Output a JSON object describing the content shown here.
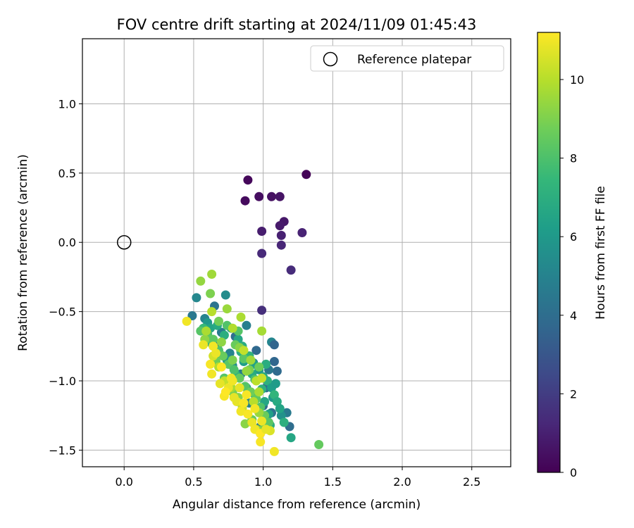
{
  "chart_data": {
    "type": "scatter",
    "title": "FOV centre drift starting at 2024/11/09 01:45:43",
    "xlabel": "Angular distance from reference (arcmin)",
    "ylabel": "Rotation from reference (arcmin)",
    "xlim": [
      -0.3,
      2.78
    ],
    "ylim": [
      -1.62,
      1.47
    ],
    "xticks": [
      0.0,
      0.5,
      1.0,
      1.5,
      2.0,
      2.5
    ],
    "xtick_labels": [
      "0.0",
      "0.5",
      "1.0",
      "1.5",
      "2.0",
      "2.5"
    ],
    "yticks": [
      1.0,
      0.5,
      0.0,
      -0.5,
      -1.0,
      -1.5
    ],
    "ytick_labels": [
      "1.0",
      "0.5",
      "0.0",
      "−0.5",
      "−1.0",
      "−1.5"
    ],
    "grid": true,
    "legend": {
      "placement": "top-right",
      "entries": [
        {
          "label": "Reference platepar",
          "marker": "open-circle"
        }
      ]
    },
    "reference_point": {
      "x": 0.0,
      "y": 0.0
    },
    "colorbar": {
      "label": "Hours from first FF file",
      "colormap": "viridis",
      "range": [
        0,
        11.2
      ],
      "ticks": [
        0,
        2,
        4,
        6,
        8,
        10
      ],
      "tick_labels": [
        "0",
        "2",
        "4",
        "6",
        "8",
        "10"
      ]
    },
    "points": [
      [
        1.31,
        0.49,
        0.1
      ],
      [
        0.89,
        0.45,
        0.2
      ],
      [
        0.87,
        0.3,
        0.3
      ],
      [
        0.97,
        0.33,
        0.4
      ],
      [
        1.06,
        0.33,
        0.5
      ],
      [
        1.12,
        0.33,
        0.6
      ],
      [
        1.15,
        0.15,
        0.7
      ],
      [
        1.12,
        0.12,
        0.8
      ],
      [
        0.99,
        0.08,
        0.9
      ],
      [
        1.13,
        0.05,
        1.0
      ],
      [
        1.28,
        0.07,
        1.1
      ],
      [
        1.13,
        -0.02,
        1.2
      ],
      [
        0.99,
        -0.08,
        1.3
      ],
      [
        1.2,
        -0.2,
        1.4
      ],
      [
        0.99,
        -0.49,
        1.5
      ],
      [
        0.49,
        -0.53,
        4.5
      ],
      [
        0.52,
        -0.4,
        5.2
      ],
      [
        0.58,
        -0.55,
        5.0
      ],
      [
        0.65,
        -0.46,
        4.3
      ],
      [
        0.73,
        -0.38,
        5.4
      ],
      [
        0.67,
        -0.75,
        3.9
      ],
      [
        0.8,
        -0.68,
        4.0
      ],
      [
        0.88,
        -0.6,
        4.8
      ],
      [
        0.95,
        -0.78,
        3.8
      ],
      [
        1.06,
        -0.72,
        5.1
      ],
      [
        1.08,
        -0.74,
        3.6
      ],
      [
        1.08,
        -0.86,
        3.7
      ],
      [
        1.1,
        -0.93,
        3.9
      ],
      [
        1.17,
        -1.23,
        4.6
      ],
      [
        1.19,
        -1.33,
        4.0
      ],
      [
        1.06,
        -1.23,
        4.2
      ],
      [
        0.98,
        -1.33,
        4.4
      ],
      [
        0.9,
        -1.16,
        4.9
      ],
      [
        1.02,
        -1.05,
        4.1
      ],
      [
        0.84,
        -0.95,
        4.7
      ],
      [
        0.93,
        -0.87,
        5.3
      ],
      [
        0.78,
        -0.89,
        5.5
      ],
      [
        1.0,
        -1.18,
        3.9
      ],
      [
        1.04,
        -0.92,
        4.5
      ],
      [
        0.76,
        -0.8,
        5.0
      ],
      [
        0.98,
        -1.38,
        5.6
      ],
      [
        1.02,
        -1.28,
        5.8
      ],
      [
        1.07,
        -1.12,
        5.9
      ],
      [
        1.13,
        -1.25,
        5.7
      ],
      [
        0.7,
        -0.65,
        4.6
      ],
      [
        0.6,
        -0.58,
        6.0
      ],
      [
        0.62,
        -0.62,
        6.5
      ],
      [
        0.67,
        -0.6,
        6.8
      ],
      [
        0.72,
        -0.67,
        7.0
      ],
      [
        0.77,
        -0.62,
        6.3
      ],
      [
        0.82,
        -0.7,
        6.6
      ],
      [
        0.85,
        -0.75,
        6.9
      ],
      [
        0.9,
        -0.82,
        7.2
      ],
      [
        0.93,
        -0.88,
        6.4
      ],
      [
        0.97,
        -0.92,
        6.1
      ],
      [
        1.0,
        -0.97,
        6.7
      ],
      [
        1.03,
        -1.0,
        7.1
      ],
      [
        1.06,
        -1.05,
        6.2
      ],
      [
        1.08,
        -1.1,
        7.3
      ],
      [
        1.1,
        -1.15,
        6.8
      ],
      [
        1.12,
        -1.2,
        6.5
      ],
      [
        1.15,
        -1.3,
        7.0
      ],
      [
        1.2,
        -1.41,
        6.6
      ],
      [
        1.05,
        -1.32,
        6.9
      ],
      [
        0.95,
        -1.2,
        7.4
      ],
      [
        0.88,
        -1.05,
        6.3
      ],
      [
        0.8,
        -0.95,
        7.2
      ],
      [
        0.74,
        -0.85,
        6.0
      ],
      [
        0.68,
        -0.8,
        6.4
      ],
      [
        0.63,
        -0.73,
        6.7
      ],
      [
        0.57,
        -0.62,
        7.5
      ],
      [
        0.86,
        -0.86,
        6.2
      ],
      [
        0.92,
        -0.95,
        6.8
      ],
      [
        0.99,
        -1.06,
        7.1
      ],
      [
        1.01,
        -1.15,
        6.6
      ],
      [
        1.04,
        -1.24,
        6.3
      ],
      [
        0.94,
        -1.1,
        7.6
      ],
      [
        0.84,
        -0.79,
        7.0
      ],
      [
        1.09,
        -1.02,
        6.1
      ],
      [
        1.02,
        -0.88,
        6.9
      ],
      [
        0.55,
        -0.64,
        8.2
      ],
      [
        0.6,
        -0.66,
        8.0
      ],
      [
        0.64,
        -0.7,
        8.4
      ],
      [
        0.68,
        -0.78,
        8.1
      ],
      [
        0.71,
        -0.82,
        8.6
      ],
      [
        0.75,
        -0.88,
        8.3
      ],
      [
        0.79,
        -0.92,
        8.0
      ],
      [
        0.83,
        -0.98,
        8.5
      ],
      [
        0.87,
        -1.04,
        8.2
      ],
      [
        0.91,
        -1.08,
        8.7
      ],
      [
        0.95,
        -1.13,
        8.4
      ],
      [
        0.98,
        -1.19,
        8.1
      ],
      [
        1.01,
        -1.25,
        8.6
      ],
      [
        1.04,
        -1.3,
        8.3
      ],
      [
        1.0,
        -1.35,
        8.8
      ],
      [
        0.92,
        -1.28,
        8.5
      ],
      [
        0.85,
        -1.18,
        8.0
      ],
      [
        0.78,
        -1.08,
        8.9
      ],
      [
        0.72,
        -0.98,
        8.2
      ],
      [
        0.66,
        -0.86,
        8.7
      ],
      [
        0.62,
        -0.7,
        8.4
      ],
      [
        0.68,
        -0.57,
        8.8
      ],
      [
        0.74,
        -0.6,
        8.1
      ],
      [
        0.8,
        -0.74,
        8.6
      ],
      [
        0.86,
        -0.84,
        8.3
      ],
      [
        0.9,
        -0.92,
        8.9
      ],
      [
        0.94,
        -0.99,
        8.0
      ],
      [
        1.4,
        -1.46,
        8.5
      ],
      [
        0.82,
        -0.64,
        8.2
      ],
      [
        0.97,
        -0.9,
        8.7
      ],
      [
        0.63,
        -0.23,
        9.6
      ],
      [
        0.55,
        -0.28,
        9.4
      ],
      [
        0.62,
        -0.37,
        9.0
      ],
      [
        0.74,
        -0.48,
        9.5
      ],
      [
        0.84,
        -0.54,
        9.8
      ],
      [
        0.99,
        -0.64,
        9.7
      ],
      [
        0.63,
        -0.5,
        10.0
      ],
      [
        0.7,
        -0.72,
        9.3
      ],
      [
        0.78,
        -0.62,
        9.9
      ],
      [
        0.83,
        -0.76,
        9.2
      ],
      [
        0.86,
        -0.78,
        10.2
      ],
      [
        0.91,
        -0.85,
        9.6
      ],
      [
        0.88,
        -0.93,
        9.4
      ],
      [
        0.95,
        -1.0,
        10.1
      ],
      [
        0.99,
        -0.98,
        10.3
      ],
      [
        0.97,
        -1.08,
        9.8
      ],
      [
        0.93,
        -1.15,
        10.0
      ],
      [
        0.97,
        -1.23,
        9.5
      ],
      [
        0.85,
        -1.2,
        10.4
      ],
      [
        0.82,
        -1.12,
        9.1
      ],
      [
        0.77,
        -1.05,
        9.7
      ],
      [
        0.72,
        -1.0,
        10.2
      ],
      [
        0.68,
        -0.9,
        9.9
      ],
      [
        0.64,
        -0.82,
        10.5
      ],
      [
        0.58,
        -0.7,
        9.3
      ],
      [
        0.59,
        -0.64,
        9.8
      ],
      [
        1.05,
        -1.36,
        10.6
      ],
      [
        0.95,
        -1.35,
        9.6
      ],
      [
        0.87,
        -1.31,
        9.2
      ],
      [
        0.78,
        -0.85,
        9.0
      ],
      [
        0.45,
        -0.57,
        11.0
      ],
      [
        0.57,
        -0.74,
        10.9
      ],
      [
        0.62,
        -0.88,
        11.1
      ],
      [
        0.63,
        -0.95,
        11.0
      ],
      [
        0.69,
        -1.02,
        10.8
      ],
      [
        0.72,
        -1.11,
        11.1
      ],
      [
        0.75,
        -1.05,
        10.9
      ],
      [
        0.77,
        -0.98,
        11.0
      ],
      [
        0.73,
        -1.08,
        11.2
      ],
      [
        0.81,
        -1.15,
        10.8
      ],
      [
        0.84,
        -1.22,
        11.0
      ],
      [
        0.89,
        -1.24,
        11.1
      ],
      [
        0.92,
        -1.3,
        10.9
      ],
      [
        0.94,
        -1.35,
        11.0
      ],
      [
        0.98,
        -1.38,
        11.2
      ],
      [
        1.02,
        -1.35,
        10.8
      ],
      [
        1.08,
        -1.51,
        11.0
      ],
      [
        0.98,
        -1.44,
        11.1
      ],
      [
        0.99,
        -1.29,
        10.9
      ],
      [
        0.94,
        -1.2,
        11.0
      ],
      [
        0.88,
        -1.1,
        11.1
      ],
      [
        0.83,
        -1.05,
        10.8
      ],
      [
        0.78,
        -1.0,
        11.0
      ],
      [
        0.7,
        -0.9,
        11.2
      ],
      [
        0.66,
        -0.8,
        10.9
      ],
      [
        0.64,
        -0.75,
        11.0
      ],
      [
        0.86,
        -1.16,
        11.1
      ],
      [
        0.79,
        -1.12,
        10.8
      ]
    ]
  }
}
